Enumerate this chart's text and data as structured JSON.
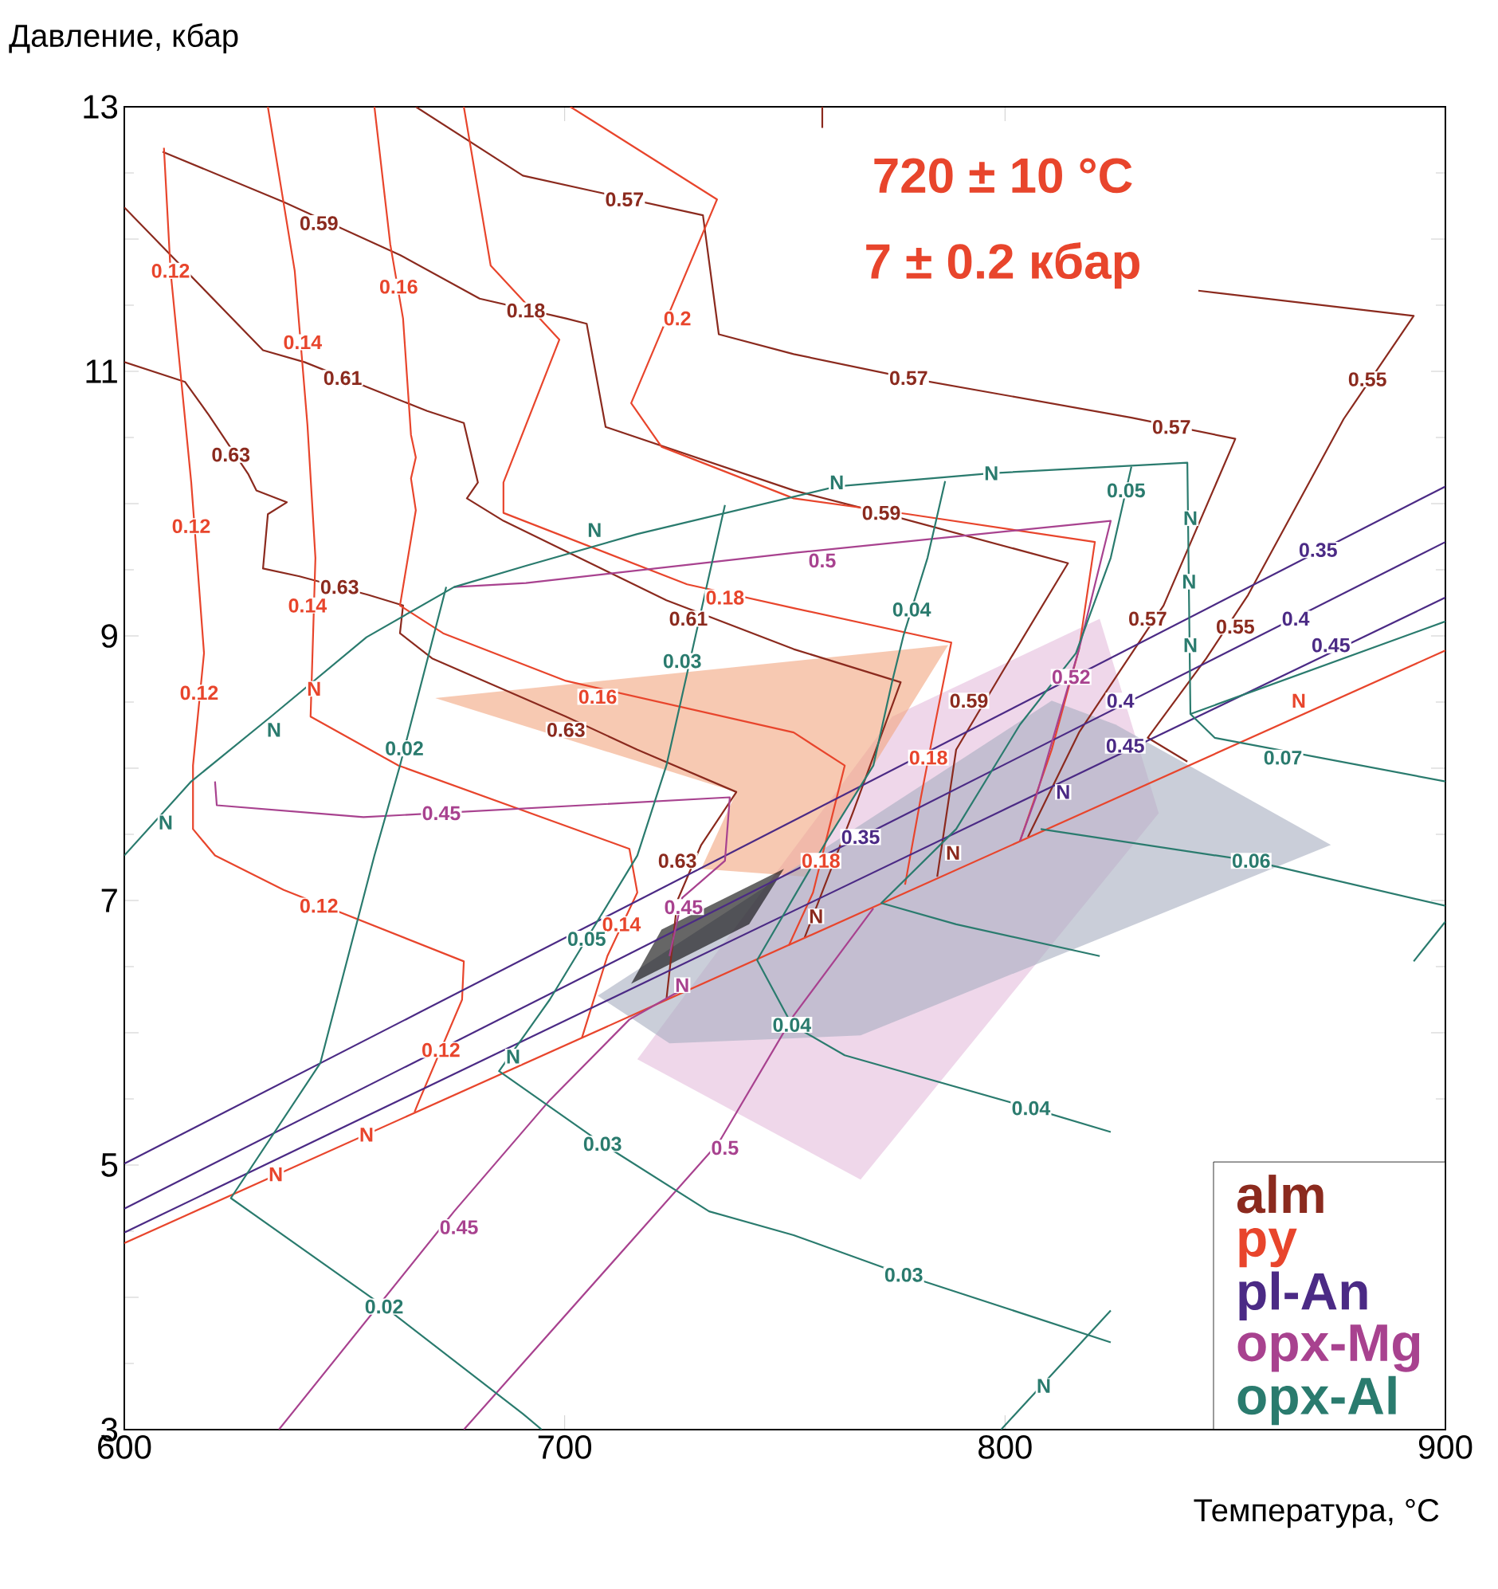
{
  "chart_data": {
    "type": "line",
    "xlabel": "Температура, °C",
    "ylabel": "Давление, кбар",
    "xlim": [
      600,
      900
    ],
    "ylim": [
      3,
      13
    ],
    "xticks": [
      600,
      700,
      800,
      900
    ],
    "yticks": [
      3,
      {
        "value": 4,
        "label": null
      },
      5,
      {
        "value": 6,
        "label": null
      },
      7,
      {
        "value": 8,
        "label": null
      },
      9,
      {
        "value": 10,
        "label": null
      },
      11,
      {
        "value": 12,
        "label": null
      },
      13
    ],
    "legend": "bottom right",
    "series": [
      {
        "type": "area",
        "color": "#e4bcdc",
        "x": [
          716.5,
          774.4,
          821.5,
          834.9,
          767.2
        ],
        "values": [
          5.8,
          8.39,
          9.13,
          7.66,
          4.89
        ]
      },
      {
        "type": "area",
        "color": "#f2a57f",
        "x": [
          670.6,
          787.1,
          754.5,
          731.0,
          739.0
        ],
        "values": [
          8.53,
          8.93,
          7.18,
          7.24,
          7.82
        ]
      },
      {
        "type": "area",
        "color": "#a7adbf",
        "x": [
          707.5,
          810.6,
          825.1,
          874.0,
          767.2,
          723.8
        ],
        "values": [
          6.28,
          8.51,
          8.33,
          7.42,
          5.98,
          5.92
        ]
      },
      {
        "type": "area",
        "color": "#000000",
        "x": [
          715.1,
          722.0,
          749.8,
          741.9
        ],
        "values": [
          6.37,
          6.78,
          7.24,
          6.82
        ]
      },
      {
        "name": "alm",
        "color": "#8b2a1e",
        "x": [
          666.2,
          690.5,
          706.8,
          731.4,
          735.0,
          752.0,
          778.1,
          828.7,
          852.3,
          836.0,
          816.8,
          805.2
        ],
        "values": [
          13.0,
          12.48,
          12.36,
          12.18,
          11.28,
          11.13,
          10.95,
          10.65,
          10.49,
          9.23,
          8.27,
          7.48
        ]
      },
      {
        "color": "#8b2a1e",
        "x": [
          758.5,
          758.5,
          null,
          843.9,
          892.8,
          876.9,
          855.2,
          845.7,
          832.4,
          841.4
        ],
        "values": [
          13.0,
          12.84,
          null,
          11.61,
          11.42,
          10.64,
          9.31,
          8.83,
          8.23,
          8.05
        ]
      },
      {
        "color": "#8b2a1e",
        "x": [
          608.7,
          636.2,
          662.6,
          680.7,
          700.3,
          705.0,
          709.3,
          752.0,
          771.9,
          814.3,
          799.8,
          788.9,
          784.6
        ],
        "values": [
          12.66,
          12.28,
          11.88,
          11.55,
          11.4,
          11.36,
          10.58,
          10.1,
          9.93,
          9.55,
          8.75,
          8.14,
          7.18
        ]
      },
      {
        "color": "#8b2a1e",
        "x": [
          600,
          631.5,
          640.9,
          668.8,
          677.1,
          680.3,
          677.8,
          686.1,
          723.1,
          752.0,
          776.3,
          765.4,
          754.5
        ],
        "values": [
          12.24,
          11.16,
          11.07,
          10.7,
          10.61,
          10.16,
          10.04,
          9.87,
          9.27,
          8.9,
          8.65,
          7.66,
          6.72
        ]
      },
      {
        "color": "#8b2a1e",
        "x": [
          600,
          613.8,
          619.2,
          628.2,
          630.0,
          636.9,
          632.6,
          631.5,
          639.8,
          655.4,
          663.3,
          662.6,
          669.9,
          700.3,
          716.5,
          739.0,
          731.0,
          725.6,
          723.1
        ],
        "values": [
          11.07,
          10.92,
          10.67,
          10.22,
          10.1,
          10.01,
          9.92,
          9.51,
          9.45,
          9.31,
          9.23,
          9.02,
          8.83,
          8.39,
          8.14,
          7.82,
          7.42,
          7.0,
          6.25
        ]
      },
      {
        "name": "py",
        "color": "#e8452c",
        "x": [
          609.0,
          610.5,
          615.2,
          618.1,
          615.6,
          615.6,
          620.6,
          636.2,
          677.1,
          676.7,
          667.0,
          665.9
        ],
        "values": [
          12.69,
          11.76,
          10.16,
          8.87,
          8.02,
          7.54,
          7.34,
          7.08,
          6.54,
          6.25,
          5.49,
          5.4
        ]
      },
      {
        "color": "#e8452c",
        "x": [
          632.6,
          638.7,
          641.6,
          643.4,
          642.3,
          662.3,
          714.7,
          716.5,
          709.7,
          703.9
        ],
        "values": [
          13.0,
          11.76,
          10.59,
          9.59,
          8.39,
          8.02,
          7.39,
          7.06,
          6.58,
          5.96
        ]
      },
      {
        "color": "#e8452c",
        "x": [
          656.8,
          660.4,
          663.3,
          665.1,
          666.2,
          665.1,
          666.2,
          662.6,
          672.4,
          700.3,
          752.0,
          763.6,
          756.4,
          750.9
        ],
        "values": [
          13.0,
          11.96,
          11.4,
          10.52,
          10.35,
          10.19,
          9.95,
          9.23,
          9.02,
          8.66,
          8.27,
          8.02,
          7.06,
          6.66
        ]
      },
      {
        "color": "#e8452c",
        "x": [
          677.1,
          683.2,
          698.8,
          686.1,
          686.1,
          727.8,
          752.0,
          787.8,
          784.2,
          780.9,
          777.3
        ],
        "values": [
          13.0,
          11.8,
          11.24,
          10.16,
          9.93,
          9.39,
          9.21,
          8.95,
          8.35,
          7.78,
          7.12
        ]
      },
      {
        "color": "#e8452c",
        "x": [
          701.3,
          734.6,
          715.1,
          722.0,
          752.0,
          778.1,
          820.4,
          816.8,
          810.6,
          803.4
        ],
        "values": [
          13.0,
          12.3,
          10.76,
          10.43,
          10.04,
          9.92,
          9.71,
          8.9,
          8.14,
          7.45
        ]
      },
      {
        "color": "#e8452c",
        "x": [
          600,
          900
        ],
        "values": [
          4.41,
          8.89
        ]
      },
      {
        "name": "pl-An",
        "color": "#4b2a85",
        "x": [
          600,
          900
        ],
        "values": [
          5.01,
          10.13
        ]
      },
      {
        "color": "#4b2a85",
        "x": [
          600,
          900
        ],
        "values": [
          4.67,
          9.71
        ]
      },
      {
        "color": "#4b2a85",
        "x": [
          600,
          900
        ],
        "values": [
          4.49,
          9.29
        ]
      },
      {
        "name": "opx-Mg",
        "color": "#a8428f",
        "x": [
          674.9,
          691.2,
          752.7,
          824.0,
          816.8,
          807.0,
          803.4
        ],
        "values": [
          9.37,
          9.4,
          9.63,
          9.87,
          8.9,
          7.78,
          7.45
        ]
      },
      {
        "color": "#a8428f",
        "x": [
          620.6,
          621.0,
          654.3,
          737.5,
          736.4,
          726.7,
          723.8
        ],
        "values": [
          7.9,
          7.72,
          7.63,
          7.78,
          7.3,
          7.02,
          6.58
        ]
      },
      {
        "color": "#a8428f",
        "x": [
          635.1,
          674.9,
          696.6,
          714.7,
          727.4
        ],
        "values": [
          3.0,
          4.65,
          5.49,
          6.1,
          6.34
        ]
      },
      {
        "color": "#a8428f",
        "x": [
          677.1,
          735.0,
          752.0,
          770.1
        ],
        "values": [
          3.0,
          5.17,
          6.13,
          6.94
        ]
      },
      {
        "name": "opx-Al",
        "color": "#2a7b6e",
        "x": [
          600,
          615.2,
          633.3,
          655.0,
          674.9,
          691.2,
          716.5,
          761.8,
          796.9,
          841.4,
          842.1,
          900
        ],
        "values": [
          7.34,
          7.9,
          8.39,
          8.99,
          9.37,
          9.53,
          9.77,
          10.13,
          10.23,
          10.31,
          8.41,
          9.11
        ]
      },
      {
        "color": "#2a7b6e",
        "x": [
          673.1,
          662.6,
          656.8,
          644.5,
          624.2,
          659.0,
          690.5,
          694.8
        ],
        "values": [
          9.37,
          8.02,
          7.34,
          5.77,
          4.75,
          3.93,
          3.12,
          3.0
        ]
      },
      {
        "color": "#2a7b6e",
        "x": [
          736.4,
          723.1,
          716.5,
          696.6,
          685.1,
          708.6,
          732.8,
          752.0,
          777.0,
          824.0
        ],
        "values": [
          9.99,
          8.02,
          7.34,
          6.25,
          5.71,
          5.16,
          4.65,
          4.47,
          4.17,
          3.66
        ]
      },
      {
        "color": "#2a7b6e",
        "x": [
          786.4,
          782.4,
          777.0,
          774.4,
          770.1,
          760.0,
          743.7,
          751.6,
          763.6,
          805.9,
          824.0
        ],
        "values": [
          10.17,
          9.59,
          9.01,
          8.66,
          8.02,
          7.48,
          6.55,
          6.06,
          5.83,
          5.43,
          5.25
        ]
      },
      {
        "color": "#2a7b6e",
        "x": [
          828.7,
          824.0,
          816.1,
          803.4,
          788.9,
          771.9,
          788.9,
          821.5
        ],
        "values": [
          10.28,
          9.59,
          8.87,
          8.33,
          7.54,
          6.98,
          6.82,
          6.58
        ]
      },
      {
        "color": "#2a7b6e",
        "x": [
          808.1,
          855.9,
          900
        ],
        "values": [
          7.54,
          7.3,
          6.96
        ]
      },
      {
        "color": "#2a7b6e",
        "x": [
          842.1,
          847.6,
          900
        ],
        "values": [
          8.41,
          8.23,
          7.9
        ]
      },
      {
        "color": "#2a7b6e",
        "x": [
          799.1,
          824.0,
          null,
          892.8,
          900
        ],
        "values": [
          3.0,
          3.9,
          null,
          6.54,
          6.84
        ]
      }
    ],
    "annotations": [
      "720 ± 10 °C",
      "7 ± 0.2 кбар",
      {
        "text": "0.57",
        "x": 713.6,
        "y": 12.3
      },
      {
        "text": "0.57",
        "x": 778.1,
        "y": 10.95
      },
      {
        "text": "0.57",
        "x": 837.8,
        "y": 10.58
      },
      {
        "text": "0.57",
        "x": 832.4,
        "y": 9.13
      },
      {
        "text": "0.59",
        "x": 644.2,
        "y": 12.12
      },
      {
        "text": "0.59",
        "x": 771.9,
        "y": 9.93
      },
      {
        "text": "0.59",
        "x": 791.8,
        "y": 8.51
      },
      {
        "text": "0.61",
        "x": 649.6,
        "y": 10.95
      },
      {
        "text": "0.61",
        "x": 728.1,
        "y": 9.13
      },
      {
        "text": "0.63",
        "x": 624.2,
        "y": 10.37
      },
      {
        "text": "0.63",
        "x": 648.9,
        "y": 9.37
      },
      {
        "text": "0.63",
        "x": 700.3,
        "y": 8.29
      },
      {
        "text": "0.63",
        "x": 725.6,
        "y": 7.3
      },
      {
        "text": "0.55",
        "x": 882.3,
        "y": 10.94
      },
      {
        "text": "0.55",
        "x": 852.3,
        "y": 9.07
      },
      {
        "text": "0.12",
        "x": 610.5,
        "y": 11.76
      },
      {
        "text": "0.12",
        "x": 615.2,
        "y": 9.83
      },
      {
        "text": "0.12",
        "x": 617.0,
        "y": 8.57
      },
      {
        "text": "0.12",
        "x": 644.2,
        "y": 6.96
      },
      {
        "text": "0.12",
        "x": 671.9,
        "y": 5.87
      },
      {
        "text": "0.14",
        "x": 640.5,
        "y": 11.22
      },
      {
        "text": "0.14",
        "x": 641.6,
        "y": 9.23
      },
      {
        "text": "0.14",
        "x": 712.9,
        "y": 6.82
      },
      {
        "text": "0.16",
        "x": 662.3,
        "y": 11.64
      },
      {
        "text": "0.16",
        "x": 707.5,
        "y": 8.54
      },
      {
        "text": "0.18",
        "x": 691.2,
        "y": 11.46
      },
      {
        "text": "0.18",
        "x": 736.4,
        "y": 9.29
      },
      {
        "text": "0.18",
        "x": 782.6,
        "y": 8.08
      },
      {
        "text": "0.18",
        "x": 758.2,
        "y": 7.3
      },
      {
        "text": "0.2",
        "x": 725.6,
        "y": 11.4
      },
      {
        "text": "0.35",
        "x": 871.1,
        "y": 9.65
      },
      {
        "text": "0.4",
        "x": 866.0,
        "y": 9.13
      },
      {
        "text": "0.45",
        "x": 874.0,
        "y": 8.93
      },
      {
        "text": "0.4",
        "x": 826.2,
        "y": 8.51
      },
      {
        "text": "0.45",
        "x": 827.3,
        "y": 8.17
      },
      {
        "text": "0.35",
        "x": 767.2,
        "y": 7.48
      },
      {
        "text": "0.5",
        "x": 758.5,
        "y": 9.57
      },
      {
        "text": "0.45",
        "x": 672.0,
        "y": 7.66
      },
      {
        "text": "0.45",
        "x": 676.0,
        "y": 4.53
      },
      {
        "text": "0.5",
        "x": 736.4,
        "y": 5.13
      },
      {
        "text": "0.52",
        "x": 815.0,
        "y": 8.69
      },
      {
        "text": "0.45",
        "x": 727.0,
        "y": 6.95
      },
      {
        "text": "0.04",
        "x": 778.8,
        "y": 9.2
      },
      {
        "text": "0.05",
        "x": 827.5,
        "y": 10.1
      },
      {
        "text": "0.03",
        "x": 726.7,
        "y": 8.81
      },
      {
        "text": "0.02",
        "x": 663.6,
        "y": 8.15
      },
      {
        "text": "0.03",
        "x": 708.6,
        "y": 5.16
      },
      {
        "text": "0.02",
        "x": 659.0,
        "y": 3.93
      },
      {
        "text": "0.03",
        "x": 777.0,
        "y": 4.17
      },
      {
        "text": "0.04",
        "x": 751.6,
        "y": 6.06
      },
      {
        "text": "0.04",
        "x": 805.9,
        "y": 5.43
      },
      {
        "text": "0.06",
        "x": 855.9,
        "y": 7.3
      },
      {
        "text": "0.07",
        "x": 863.1,
        "y": 8.08
      },
      {
        "text": "0.05",
        "x": 705.0,
        "y": 6.71
      },
      {
        "text": "N",
        "x": 634.4,
        "y": 4.93
      },
      {
        "text": "N",
        "x": 688.3,
        "y": 5.82
      },
      {
        "text": "N",
        "x": 757.1,
        "y": 6.88
      },
      {
        "text": "N",
        "x": 788.2,
        "y": 7.36
      },
      {
        "text": "N",
        "x": 813.2,
        "y": 7.82
      },
      {
        "text": "N",
        "x": 655.0,
        "y": 5.23
      },
      {
        "text": "N",
        "x": 866.7,
        "y": 8.51
      },
      {
        "text": "N",
        "x": 726.7,
        "y": 6.36
      },
      {
        "text": "N",
        "x": 634.0,
        "y": 8.29
      },
      {
        "text": "N",
        "x": 706.8,
        "y": 9.8
      },
      {
        "text": "N",
        "x": 761.8,
        "y": 10.16
      },
      {
        "text": "N",
        "x": 796.9,
        "y": 10.23
      },
      {
        "text": "N",
        "x": 842.1,
        "y": 9.89
      },
      {
        "text": "N",
        "x": 842.1,
        "y": 8.93
      },
      {
        "text": "N",
        "x": 808.8,
        "y": 3.33
      },
      {
        "text": "N",
        "x": 609.4,
        "y": 7.59
      },
      {
        "text": "N",
        "x": 643.1,
        "y": 8.6
      },
      {
        "text": "N",
        "x": 841.8,
        "y": 9.41
      }
    ]
  }
}
